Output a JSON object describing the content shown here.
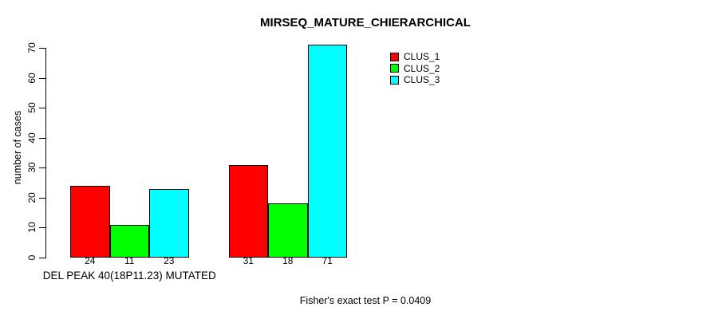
{
  "chart_data": {
    "type": "bar",
    "title": "MIRSEQ_MATURE_CHIERARCHICAL",
    "ylabel": "number of cases",
    "xlabel": "",
    "ylim": [
      0,
      70
    ],
    "yticks": [
      0,
      10,
      20,
      30,
      40,
      50,
      60,
      70
    ],
    "categories": [
      "DEL PEAK 40(18P11.23) MUTATED",
      ""
    ],
    "series": [
      {
        "name": "CLUS_1",
        "color": "#ff0000",
        "values": [
          24,
          31
        ]
      },
      {
        "name": "CLUS_2",
        "color": "#00ff00",
        "values": [
          11,
          18
        ]
      },
      {
        "name": "CLUS_3",
        "color": "#00ffff",
        "values": [
          23,
          71
        ]
      }
    ],
    "bar_value_labels": [
      [
        24,
        11,
        23
      ],
      [
        31,
        18,
        71
      ]
    ],
    "legend": {
      "position": "top-right",
      "entries": [
        "CLUS_1",
        "CLUS_2",
        "CLUS_3"
      ]
    },
    "grid": false,
    "annotation": "Fisher's exact test P = 0.0409",
    "axis_color": "#000000",
    "bar_border_color": "#000000",
    "background_color": "#ffffff"
  }
}
